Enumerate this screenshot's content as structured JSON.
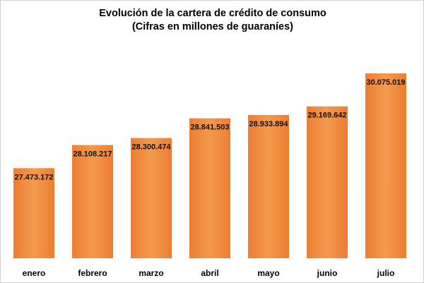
{
  "chart_data": {
    "type": "bar",
    "title": "Evolución de la cartera de crédito de consumo",
    "subtitle": "(Cifras en millones de guaraníes)",
    "categories": [
      "enero",
      "febrero",
      "marzo",
      "abril",
      "mayo",
      "junio",
      "julio"
    ],
    "values": [
      27473172,
      28108217,
      28300474,
      28841503,
      28933894,
      29169642,
      30075019
    ],
    "value_labels": [
      "27.473.172",
      "28.108.217",
      "28.300.474",
      "28.841.503",
      "28.933.894",
      "29.169.642",
      "30.075.019"
    ],
    "xlabel": "",
    "ylabel": "",
    "ylim": [
      25000000,
      30500000
    ],
    "grid": false,
    "legend": "none",
    "colors": {
      "bar": "#ED7D31",
      "bar_light": "#F39A4F"
    }
  }
}
